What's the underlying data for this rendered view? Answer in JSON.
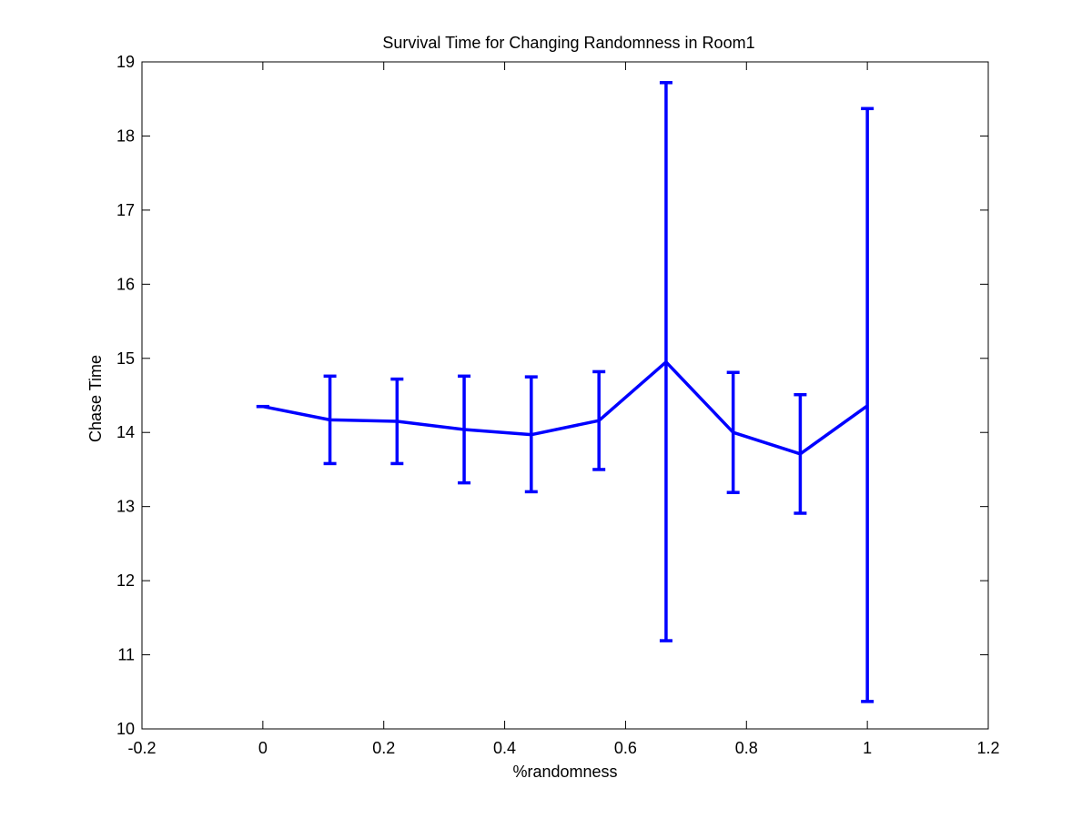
{
  "chart_data": {
    "type": "line",
    "title": "Survival Time for Changing Randomness in Room1",
    "xlabel": "%randomness",
    "ylabel": "Chase Time",
    "xlim": [
      -0.2,
      1.2
    ],
    "ylim": [
      10,
      19
    ],
    "xticks": [
      -0.2,
      0,
      0.2,
      0.4,
      0.6,
      0.8,
      1,
      1.2
    ],
    "xtick_labels": [
      "-0.2",
      "0",
      "0.2",
      "0.4",
      "0.6",
      "0.8",
      "1",
      "1.2"
    ],
    "yticks": [
      10,
      11,
      12,
      13,
      14,
      15,
      16,
      17,
      18,
      19
    ],
    "ytick_labels": [
      "10",
      "11",
      "12",
      "13",
      "14",
      "15",
      "16",
      "17",
      "18",
      "19"
    ],
    "grid": false,
    "series": [
      {
        "color": "#0000ff",
        "x": [
          0,
          0.111,
          0.222,
          0.333,
          0.444,
          0.556,
          0.667,
          0.778,
          0.889,
          1.0
        ],
        "y": [
          14.35,
          14.17,
          14.15,
          14.04,
          13.97,
          14.16,
          14.95,
          14.0,
          13.71,
          14.36
        ],
        "err_low": [
          14.35,
          13.58,
          13.58,
          13.32,
          13.2,
          13.5,
          11.19,
          13.19,
          12.91,
          10.37
        ],
        "err_high": [
          14.35,
          14.76,
          14.72,
          14.76,
          14.75,
          14.82,
          18.72,
          14.81,
          14.51,
          18.37
        ]
      }
    ]
  }
}
